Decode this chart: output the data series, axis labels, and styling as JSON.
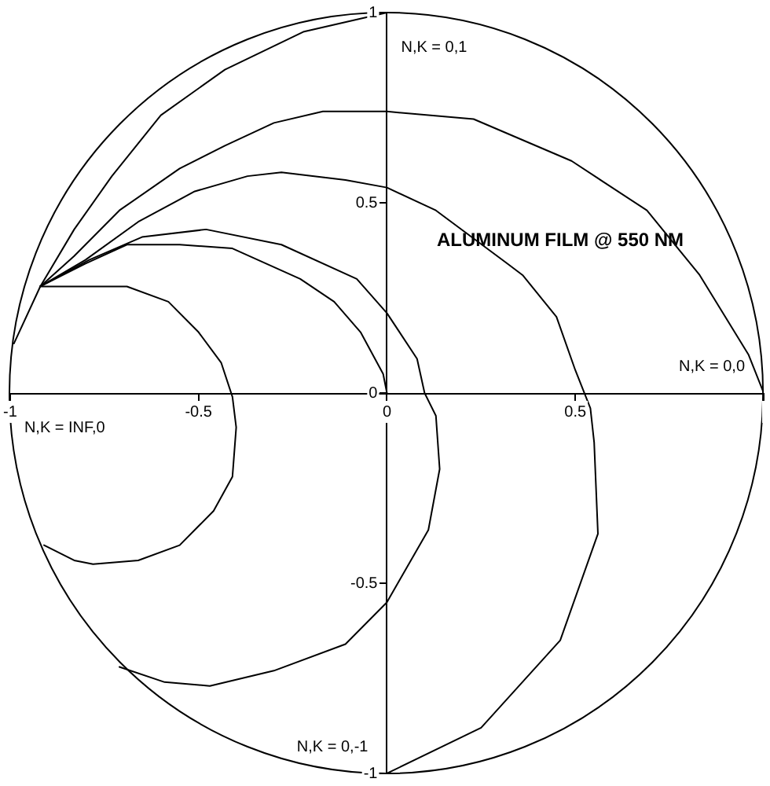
{
  "chart_data": {
    "type": "line",
    "title": "ALUMINUM FILM @ 550 NM",
    "annotations": [
      "N,K = 0,1",
      "N,K = 0,0",
      "N,K = INF,0",
      "N,K = 0,-1"
    ],
    "xlim": [
      -1,
      1
    ],
    "ylim": [
      -1,
      1
    ],
    "xticks": [
      -1,
      -0.5,
      0,
      0.5,
      {
        "value": 1,
        "label": null
      }
    ],
    "yticks": [
      -1,
      -0.5,
      0,
      0.5,
      1
    ],
    "grid": false,
    "legend": false,
    "marker": "none",
    "line_style": "solid",
    "series": [
      {
        "color": "#000000",
        "x": [
          0,
          -0.22,
          -0.43,
          -0.6,
          -0.73,
          -0.83,
          -0.92,
          -0.99
        ],
        "values": [
          1,
          0.95,
          0.85,
          0.73,
          0.57,
          0.43,
          0.28,
          0.13
        ]
      },
      {
        "color": "#000000",
        "x": [
          1,
          0.96,
          0.83,
          0.69,
          0.49,
          0.23,
          0,
          -0.17,
          -0.3,
          -0.43,
          -0.55,
          -0.71,
          -0.83,
          -0.92
        ],
        "values": [
          0,
          0.1,
          0.31,
          0.48,
          0.61,
          0.72,
          0.74,
          0.74,
          0.71,
          0.65,
          0.59,
          0.48,
          0.36,
          0.28
        ]
      },
      {
        "color": "#000000",
        "x": [
          0,
          0.25,
          0.46,
          0.56,
          0.55,
          0.54,
          0.5,
          0.45,
          0.36,
          0.32,
          0.13,
          0,
          -0.11,
          -0.28,
          -0.37,
          -0.51,
          -0.66,
          -0.8,
          -0.92
        ],
        "values": [
          -1,
          -0.88,
          -0.65,
          -0.37,
          -0.13,
          -0.04,
          0.06,
          0.2,
          0.31,
          0.34,
          0.48,
          0.54,
          0.56,
          0.58,
          0.57,
          0.53,
          0.45,
          0.35,
          0.28
        ]
      },
      {
        "color": "#000000",
        "x": [
          0,
          -0.01,
          -0.07,
          -0.14,
          -0.23,
          -0.41,
          -0.55,
          -0.69,
          -0.8,
          -0.92
        ],
        "values": [
          0,
          0.05,
          0.16,
          0.24,
          0.3,
          0.38,
          0.39,
          0.39,
          0.34,
          0.28
        ]
      },
      {
        "color": "#000000",
        "x": [
          -0.71,
          -0.59,
          -0.47,
          -0.3,
          -0.11,
          0,
          0.11,
          0.14,
          0.13,
          0.1,
          0.08,
          0,
          -0.08,
          -0.28,
          -0.48,
          -0.65,
          -0.79,
          -0.92
        ],
        "values": [
          -0.72,
          -0.76,
          -0.77,
          -0.73,
          -0.66,
          -0.55,
          -0.36,
          -0.2,
          -0.06,
          0,
          0.09,
          0.21,
          0.3,
          0.39,
          0.43,
          0.41,
          0.35,
          0.28
        ]
      },
      {
        "color": "#000000",
        "x": [
          -0.91,
          -0.83,
          -0.78,
          -0.66,
          -0.55,
          -0.46,
          -0.41,
          -0.4,
          -0.41,
          -0.44,
          -0.5,
          -0.58,
          -0.69,
          -0.83,
          -0.92
        ],
        "values": [
          -0.4,
          -0.44,
          -0.45,
          -0.44,
          -0.4,
          -0.31,
          -0.22,
          -0.09,
          -0.01,
          0.08,
          0.16,
          0.24,
          0.28,
          0.28,
          0.28
        ]
      }
    ]
  }
}
